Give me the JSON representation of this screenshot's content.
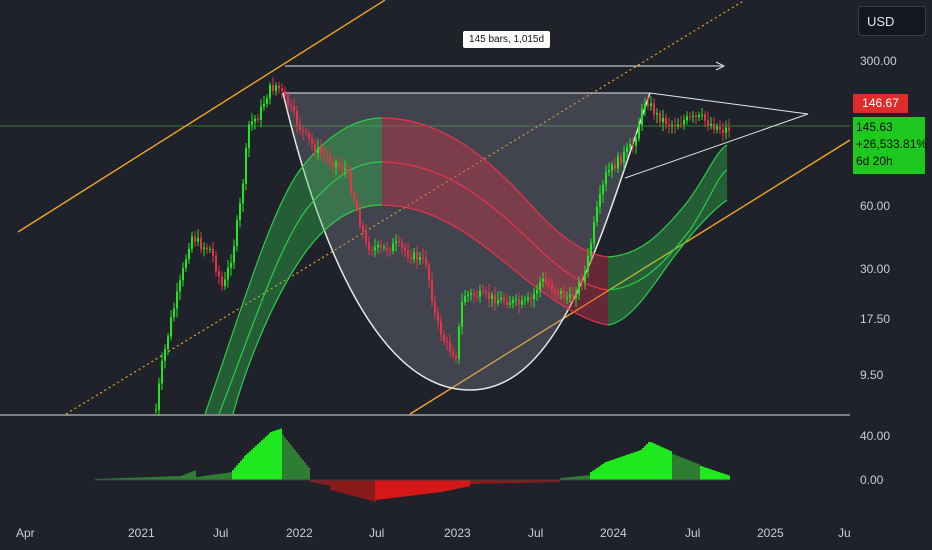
{
  "currency_button": "USD",
  "price_axis": {
    "labels": [
      "300.00",
      "60.00",
      "30.00",
      "17.50",
      "9.50"
    ],
    "last_price": "146.67",
    "current": {
      "price": "145.63",
      "change": "+26,533.81%",
      "countdown": "6d 20h"
    }
  },
  "indicator_axis": {
    "labels": [
      "40.00",
      "0.00"
    ]
  },
  "time_axis": {
    "labels": [
      "Apr",
      "2021",
      "Jul",
      "2022",
      "Jul",
      "2023",
      "Jul",
      "2024",
      "Jul",
      "2025",
      "Ju"
    ]
  },
  "measure": {
    "label": "145 bars, 1,015d"
  },
  "colors": {
    "background": "#1f222b",
    "up": "#1fe81f",
    "down": "#e8334a",
    "channel": "#f5a623",
    "pattern_fill": "#8a8d99",
    "band_green": "#2ecc4a",
    "band_red": "#d9334a"
  }
}
